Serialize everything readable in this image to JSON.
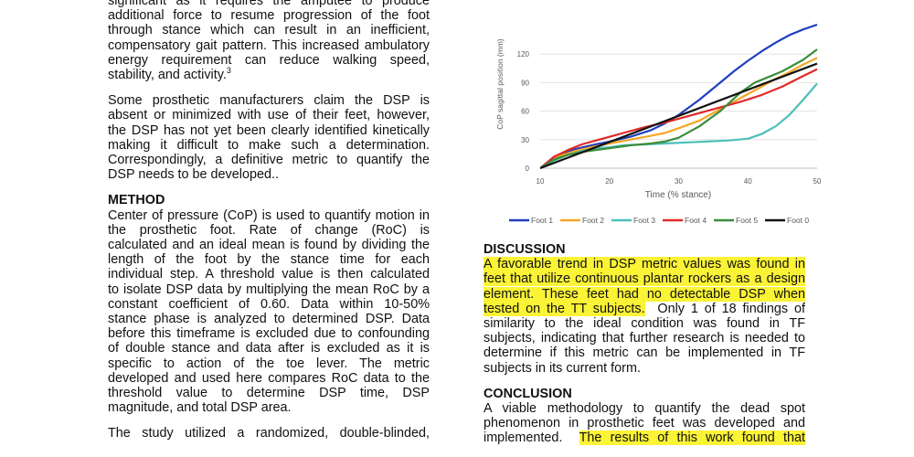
{
  "left_column": {
    "intro_lines": [
      "significant as it requires the amputee to produce",
      "additional force to resume progression of the foot",
      "through stance which can result in an inefficient,",
      "compensatory gait pattern. This increased ambulatory",
      "energy requirement can reduce walking speed,"
    ],
    "intro_last": "stability, and activity.",
    "intro_ref": "3",
    "para2_lines": [
      "Some prosthetic manufacturers claim the DSP is",
      "absent or minimized with use of their feet, however,",
      "the DSP has not yet been clearly identified kinetically",
      "making it difficult to make such a determination.",
      "Correspondingly, a definitive metric to quantify the"
    ],
    "para2_last": "DSP needs to be developed..",
    "method_heading": "METHOD",
    "method_lines": [
      "Center of pressure (CoP) is used to quantify motion in",
      "the prosthetic foot. Rate of change (RoC) is",
      "calculated and an ideal mean is found by dividing the",
      "length of the foot by the stance time for each",
      "individual step.  A threshold value is then calculated",
      "to isolate DSP data by multiplying the mean RoC by a",
      "constant coefficient of 0.60. Data within 10-50%",
      "stance phase is analyzed to determined DSP. Data",
      "before this timeframe is excluded due to confounding",
      "of double stance and data after is excluded as it is",
      "specific to action of the toe lever. The metric",
      "developed and used here compares RoC data to the",
      "threshold value to determine DSP time, DSP"
    ],
    "method_last": "magnitude, and total DSP area.",
    "study_line": "The study utilized a randomized, double-blinded,"
  },
  "right_column": {
    "discussion_heading": "DISCUSSION",
    "discussion_hl_lines": [
      "A favorable trend in DSP metric values was found in",
      "feet that utilize continuous plantar rockers as a design",
      "element. These feet had no detectable DSP when"
    ],
    "discussion_hl_tail": "tested on the TT subjects.",
    "discussion_tail_rest": "  Only 1 of 18 findings of",
    "discussion_lines": [
      "similarity to the ideal condition was found in TF",
      "subjects, indicating that further research is needed to",
      "determine if this metric can be implemented in TF"
    ],
    "discussion_last": "subjects in its current form.",
    "conclusion_heading": "CONCLUSION",
    "conclusion_lines": [
      "A viable methodology to quantify the dead spot",
      "phenomenon in prosthetic feet was developed and"
    ],
    "conclusion_plain": "implemented.  ",
    "conclusion_hl": "The results of this work found that"
  },
  "chart_data": {
    "type": "line",
    "title": "",
    "xlabel": "Time (% stance)",
    "ylabel": "CoP sagittal position (mm)",
    "xlim": [
      10,
      50
    ],
    "ylim": [
      0,
      150
    ],
    "xticks": [
      10,
      20,
      30,
      40,
      50
    ],
    "yticks": [
      0,
      30,
      60,
      90,
      120
    ],
    "grid": "horizontal",
    "legend_position": "bottom",
    "series": [
      {
        "name": "Foot 1",
        "color": "#1f3fbf",
        "points": [
          [
            10,
            0
          ],
          [
            12,
            12
          ],
          [
            15,
            20
          ],
          [
            18,
            25
          ],
          [
            20,
            28
          ],
          [
            23,
            33
          ],
          [
            26,
            40
          ],
          [
            28,
            47
          ],
          [
            30,
            56
          ],
          [
            33,
            72
          ],
          [
            36,
            90
          ],
          [
            38,
            102
          ],
          [
            40,
            113
          ],
          [
            42,
            123
          ],
          [
            44,
            132
          ],
          [
            46,
            140
          ],
          [
            48,
            146
          ],
          [
            50,
            151
          ]
        ]
      },
      {
        "name": "Foot 2",
        "color": "#f5a623",
        "points": [
          [
            10,
            0
          ],
          [
            12,
            11
          ],
          [
            15,
            18
          ],
          [
            18,
            23
          ],
          [
            20,
            26
          ],
          [
            23,
            30
          ],
          [
            26,
            34
          ],
          [
            28,
            37
          ],
          [
            30,
            42
          ],
          [
            33,
            50
          ],
          [
            36,
            62
          ],
          [
            38,
            70
          ],
          [
            40,
            78
          ],
          [
            42,
            86
          ],
          [
            44,
            94
          ],
          [
            46,
            101
          ],
          [
            48,
            109
          ],
          [
            50,
            116
          ]
        ]
      },
      {
        "name": "Foot 3",
        "color": "#4cc0b8",
        "points": [
          [
            10,
            0
          ],
          [
            12,
            8
          ],
          [
            14,
            14
          ],
          [
            16,
            18
          ],
          [
            18,
            21
          ],
          [
            20,
            22
          ],
          [
            22,
            24
          ],
          [
            25,
            25
          ],
          [
            28,
            26
          ],
          [
            31,
            27
          ],
          [
            34,
            28
          ],
          [
            37,
            29
          ],
          [
            40,
            31
          ],
          [
            42,
            36
          ],
          [
            44,
            44
          ],
          [
            46,
            56
          ],
          [
            48,
            72
          ],
          [
            50,
            89
          ]
        ]
      },
      {
        "name": "Foot 4",
        "color": "#e02a2a",
        "points": [
          [
            10,
            0
          ],
          [
            12,
            12
          ],
          [
            14,
            19
          ],
          [
            16,
            25
          ],
          [
            18,
            29
          ],
          [
            20,
            33
          ],
          [
            22,
            37
          ],
          [
            25,
            43
          ],
          [
            28,
            48
          ],
          [
            30,
            52
          ],
          [
            33,
            58
          ],
          [
            36,
            64
          ],
          [
            39,
            70
          ],
          [
            42,
            77
          ],
          [
            45,
            86
          ],
          [
            48,
            97
          ],
          [
            50,
            104
          ]
        ]
      },
      {
        "name": "Foot 5",
        "color": "#3c8c3c",
        "points": [
          [
            10,
            0
          ],
          [
            12,
            9
          ],
          [
            14,
            14
          ],
          [
            16,
            17
          ],
          [
            18,
            19
          ],
          [
            20,
            21
          ],
          [
            23,
            24
          ],
          [
            26,
            26
          ],
          [
            28,
            28
          ],
          [
            30,
            32
          ],
          [
            33,
            44
          ],
          [
            36,
            60
          ],
          [
            39,
            80
          ],
          [
            41,
            90
          ],
          [
            43,
            96
          ],
          [
            45,
            102
          ],
          [
            48,
            114
          ],
          [
            50,
            125
          ]
        ]
      },
      {
        "name": "Foot 0",
        "color": "#111111",
        "points": [
          [
            10,
            0
          ],
          [
            50,
            110
          ]
        ]
      }
    ]
  }
}
